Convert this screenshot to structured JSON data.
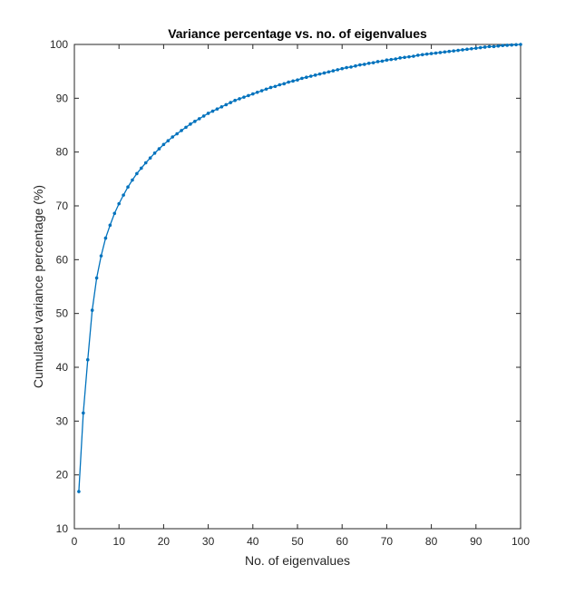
{
  "chart_data": {
    "type": "line",
    "title": "Variance percentage vs. no. of eigenvalues",
    "xlabel": "No. of eigenvalues",
    "ylabel": "Cumulated variance percentage (%)",
    "xlim": [
      0,
      100
    ],
    "ylim": [
      10,
      100
    ],
    "xticks": [
      "0",
      "10",
      "20",
      "30",
      "40",
      "50",
      "60",
      "70",
      "80",
      "90",
      "100"
    ],
    "yticks": [
      "10",
      "20",
      "30",
      "40",
      "50",
      "60",
      "70",
      "80",
      "90",
      "100"
    ],
    "grid": false,
    "line_color": "#0072bd",
    "marker": "dot",
    "series": [
      {
        "x": [
          1,
          2,
          3,
          4,
          5,
          6,
          7,
          8,
          9,
          10,
          11,
          12,
          13,
          14,
          15,
          16,
          17,
          18,
          19,
          20,
          21,
          22,
          23,
          24,
          25,
          26,
          27,
          28,
          29,
          30,
          31,
          32,
          33,
          34,
          35,
          36,
          37,
          38,
          39,
          40,
          41,
          42,
          43,
          44,
          45,
          46,
          47,
          48,
          49,
          50,
          51,
          52,
          53,
          54,
          55,
          56,
          57,
          58,
          59,
          60,
          61,
          62,
          63,
          64,
          65,
          66,
          67,
          68,
          69,
          70,
          71,
          72,
          73,
          74,
          75,
          76,
          77,
          78,
          79,
          80,
          81,
          82,
          83,
          84,
          85,
          86,
          87,
          88,
          89,
          90,
          91,
          92,
          93,
          94,
          95,
          96,
          97,
          98,
          99,
          100
        ],
        "values": [
          16.9,
          31.5,
          41.4,
          50.6,
          56.6,
          60.7,
          64.0,
          66.4,
          68.6,
          70.4,
          72.0,
          73.5,
          74.8,
          76.0,
          77.0,
          78.0,
          78.9,
          79.8,
          80.6,
          81.4,
          82.1,
          82.8,
          83.4,
          84.0,
          84.6,
          85.2,
          85.7,
          86.2,
          86.7,
          87.2,
          87.6,
          88.0,
          88.4,
          88.8,
          89.2,
          89.6,
          89.9,
          90.2,
          90.5,
          90.8,
          91.1,
          91.4,
          91.7,
          92.0,
          92.2,
          92.5,
          92.7,
          93.0,
          93.2,
          93.4,
          93.7,
          93.9,
          94.1,
          94.3,
          94.5,
          94.7,
          94.9,
          95.1,
          95.3,
          95.5,
          95.7,
          95.8,
          96.0,
          96.2,
          96.3,
          96.5,
          96.6,
          96.8,
          96.9,
          97.1,
          97.2,
          97.3,
          97.5,
          97.6,
          97.7,
          97.8,
          98.0,
          98.1,
          98.2,
          98.3,
          98.4,
          98.5,
          98.6,
          98.7,
          98.8,
          98.9,
          99.0,
          99.1,
          99.2,
          99.3,
          99.4,
          99.5,
          99.6,
          99.6,
          99.7,
          99.8,
          99.85,
          99.9,
          99.95,
          100.0
        ]
      }
    ]
  }
}
